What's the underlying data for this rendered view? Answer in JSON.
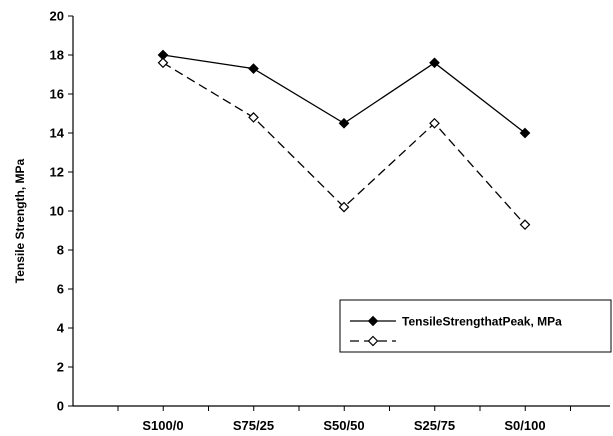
{
  "chart_data": {
    "type": "line",
    "categories": [
      "S100/0",
      "S75/25",
      "S50/50",
      "S25/75",
      "S0/100"
    ],
    "series": [
      {
        "name": "TensileStrengthatPeak, MPa",
        "values": [
          18.0,
          17.3,
          14.5,
          17.6,
          14.0
        ],
        "color": "#000000",
        "line_style": "solid",
        "marker": "filled-diamond"
      },
      {
        "name": "",
        "values": [
          17.6,
          14.8,
          10.2,
          14.5,
          9.3
        ],
        "color": "#000000",
        "line_style": "dashed",
        "marker": "open-diamond"
      }
    ],
    "title": "",
    "xlabel": "",
    "ylabel": "Tensile Strength, MPa",
    "ylim": [
      0,
      20
    ],
    "yticks": [
      0,
      2,
      4,
      6,
      8,
      10,
      12,
      14,
      16,
      18,
      20
    ],
    "grid": false,
    "legend_position": "bottom-right"
  }
}
